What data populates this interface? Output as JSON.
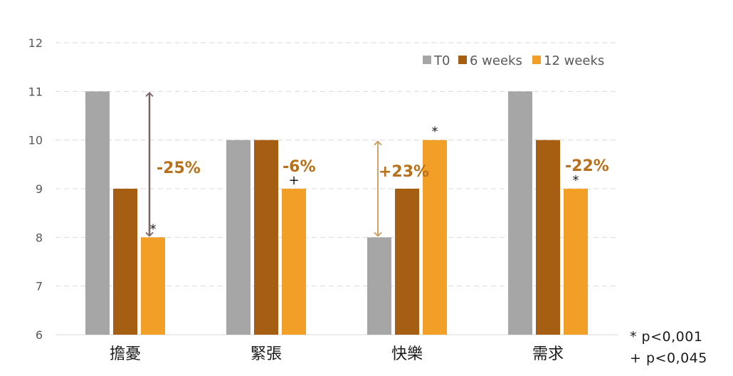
{
  "chart_data": {
    "type": "bar",
    "categories": [
      "擔憂",
      "緊張",
      "快樂",
      "需求"
    ],
    "series": [
      {
        "name": "T0",
        "values": [
          11,
          10,
          8,
          11
        ],
        "color": "#a6a6a6"
      },
      {
        "name": "6 weeks",
        "values": [
          9,
          10,
          9,
          10
        ],
        "color": "#a65f12"
      },
      {
        "name": "12 weeks",
        "values": [
          8,
          9,
          10,
          9
        ],
        "color": "#f29f27"
      }
    ],
    "ylim": [
      6,
      12
    ],
    "yticks": [
      6,
      7,
      8,
      9,
      10,
      11,
      12
    ],
    "grid": true,
    "legend_position": "top-right",
    "annotations": [
      {
        "category": 0,
        "text": "-25%",
        "from": 11,
        "to": 8,
        "arrow_color": "#7a6462",
        "text_color": "#b8701a"
      },
      {
        "category": 1,
        "text": "-6%",
        "text_color": "#b8701a"
      },
      {
        "category": 2,
        "text": "+23%",
        "from": 8,
        "to": 10,
        "arrow_color": "#c99a5a",
        "text_color": "#b8701a"
      },
      {
        "category": 3,
        "text": "-22%",
        "text_color": "#b8701a"
      }
    ],
    "significance": [
      {
        "category": 0,
        "series": 2,
        "marker": "*"
      },
      {
        "category": 1,
        "series": 2,
        "marker": "+"
      },
      {
        "category": 2,
        "series": 2,
        "marker": "*"
      },
      {
        "category": 3,
        "series": 2,
        "marker": "*"
      }
    ]
  },
  "footnotes": [
    "* p<0,001",
    "+ p<0,045"
  ]
}
